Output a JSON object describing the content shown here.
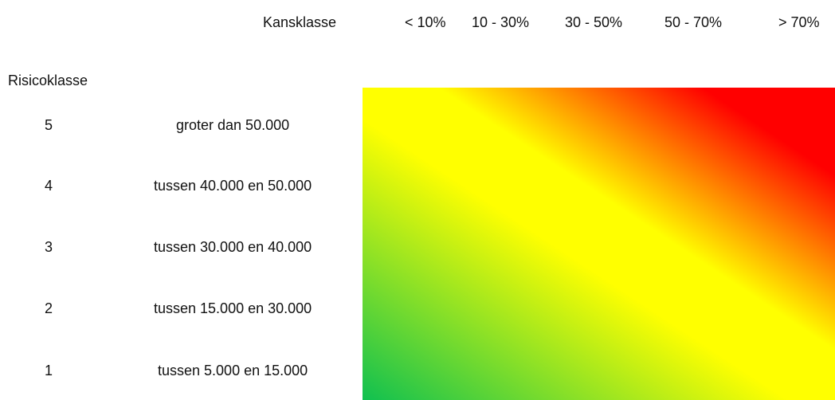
{
  "header": {
    "label": "Kansklasse",
    "columns": [
      "< 10%",
      "10 - 30%",
      "30 - 50%",
      "50 - 70%",
      "> 70%"
    ]
  },
  "rows_label": "Risicoklasse",
  "rows": [
    {
      "number": 5,
      "label": "groter dan 50.000"
    },
    {
      "number": 4,
      "label": "tussen 40.000 en 50.000"
    },
    {
      "number": 3,
      "label": "tussen 30.000 en 40.000"
    },
    {
      "number": 2,
      "label": "tussen 15.000 en 30.000"
    },
    {
      "number": 1,
      "label": "tussen 5.000 en 15.000"
    }
  ]
}
